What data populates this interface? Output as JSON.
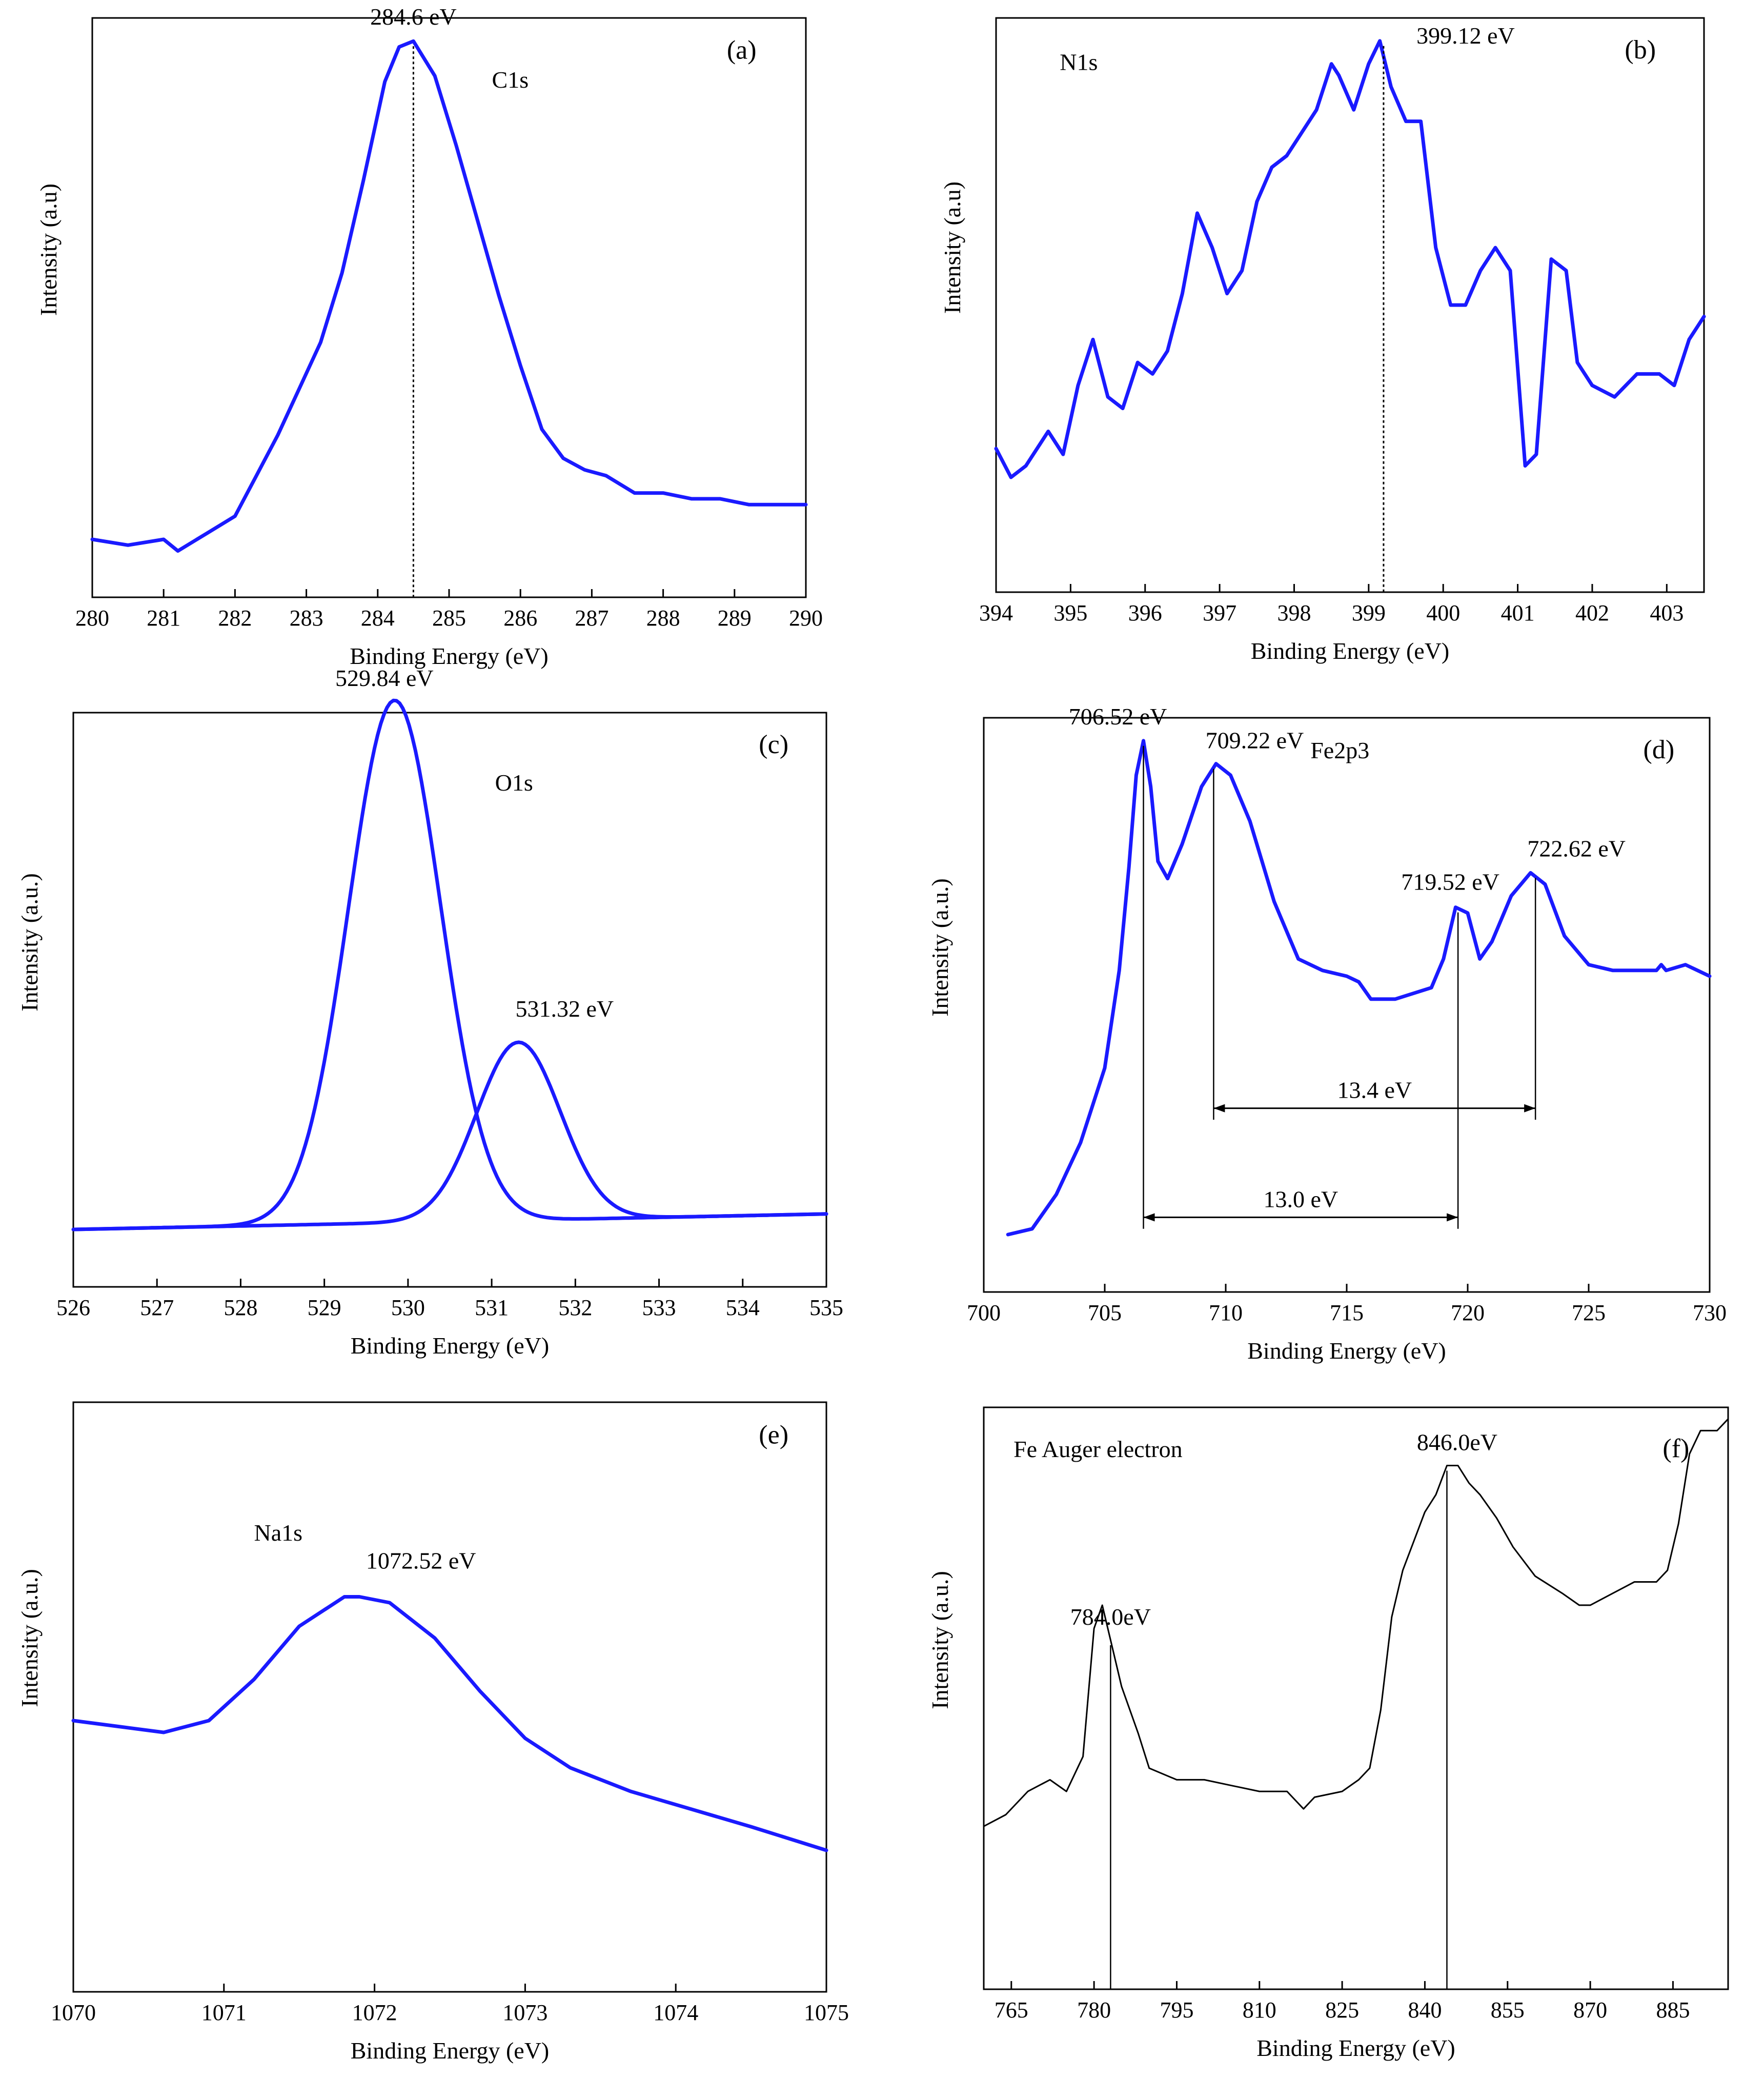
{
  "figure": {
    "panels_count": 6
  },
  "chart_data": [
    {
      "type": "line",
      "panel": "(a)",
      "title": "C1s",
      "xlabel": "Binding Energy (eV)",
      "ylabel": "Intensity (a.u)",
      "xlim": [
        280,
        290
      ],
      "ylim": [
        0,
        100
      ],
      "xticks": [
        280,
        281,
        282,
        283,
        284,
        285,
        286,
        287,
        288,
        289,
        290
      ],
      "tick_labels": [
        "280",
        "281",
        "282",
        "283",
        "284",
        "285",
        "286",
        "287",
        "288",
        "289",
        "290"
      ],
      "color": "#1a1aff",
      "x": [
        280.0,
        280.5,
        281.0,
        281.2,
        281.6,
        282.0,
        282.3,
        282.6,
        282.9,
        283.2,
        283.5,
        283.8,
        284.1,
        284.3,
        284.5,
        284.8,
        285.1,
        285.4,
        285.7,
        286.0,
        286.3,
        286.6,
        286.9,
        287.2,
        287.6,
        288.0,
        288.4,
        288.8,
        289.2,
        289.6,
        290.0
      ],
      "y": [
        10,
        9,
        10,
        8,
        11,
        14,
        21,
        28,
        36,
        44,
        56,
        72,
        89,
        95,
        96,
        90,
        78,
        65,
        52,
        40,
        29,
        24,
        22,
        21,
        18,
        18,
        17,
        17,
        16,
        16,
        16
      ],
      "annotations": [
        {
          "text": "284.6 eV",
          "x": 284.5,
          "line": "dotted"
        }
      ]
    },
    {
      "type": "line",
      "panel": "(b)",
      "title": "N1s",
      "xlabel": "Binding Energy (eV)",
      "ylabel": "Intensity (a.u)",
      "xlim": [
        394,
        403.5
      ],
      "ylim": [
        0,
        100
      ],
      "xticks": [
        394,
        395,
        396,
        397,
        398,
        399,
        400,
        401,
        402,
        403
      ],
      "tick_labels": [
        "394",
        "395",
        "396",
        "397",
        "398",
        "399",
        "400",
        "401",
        "402",
        "403"
      ],
      "color": "#1a1aff",
      "x": [
        394.0,
        394.2,
        394.4,
        394.7,
        394.9,
        395.1,
        395.3,
        395.5,
        395.7,
        395.9,
        396.1,
        396.3,
        396.5,
        396.7,
        396.9,
        397.1,
        397.3,
        397.5,
        397.7,
        397.9,
        398.1,
        398.3,
        398.5,
        398.6,
        398.8,
        399.0,
        399.15,
        399.3,
        399.5,
        399.7,
        399.9,
        400.1,
        400.3,
        400.5,
        400.7,
        400.9,
        401.1,
        401.25,
        401.45,
        401.65,
        401.8,
        402.0,
        402.3,
        402.6,
        402.9,
        403.1,
        403.3,
        403.5
      ],
      "y": [
        25,
        20,
        22,
        28,
        24,
        36,
        44,
        34,
        32,
        40,
        38,
        42,
        52,
        66,
        60,
        52,
        56,
        68,
        74,
        76,
        80,
        84,
        92,
        90,
        84,
        92,
        96,
        88,
        82,
        82,
        60,
        50,
        50,
        56,
        60,
        56,
        22,
        24,
        58,
        56,
        40,
        36,
        34,
        38,
        38,
        36,
        44,
        48
      ],
      "annotations": [
        {
          "text": "399.12 eV",
          "x": 399.2,
          "line": "dotted"
        }
      ]
    },
    {
      "type": "line",
      "panel": "(c)",
      "title": "O1s",
      "xlabel": "Binding Energy (eV)",
      "ylabel": "Intensity (a.u.)",
      "xlim": [
        526,
        535
      ],
      "ylim": [
        0,
        100
      ],
      "xticks": [
        526,
        527,
        528,
        529,
        530,
        531,
        532,
        533,
        534,
        535
      ],
      "tick_labels": [
        "526",
        "527",
        "528",
        "529",
        "530",
        "531",
        "532",
        "533",
        "534",
        "535"
      ],
      "series": [
        {
          "name": "529.84 eV component",
          "center": 529.84,
          "height": 91,
          "sigma": 0.55,
          "baseline": 10,
          "slope": 0.3
        },
        {
          "name": "531.32 eV component",
          "center": 531.32,
          "height": 31,
          "sigma": 0.5,
          "baseline": 10,
          "slope": 0.3
        }
      ],
      "annotations": [
        {
          "text": "529.84 eV",
          "x": 529.84
        },
        {
          "text": "531.32 eV",
          "x": 531.32
        }
      ]
    },
    {
      "type": "line",
      "panel": "(d)",
      "title": "Fe2p3",
      "xlabel": "Binding Energy (eV)",
      "ylabel": "Intensity (a.u.)",
      "xlim": [
        700,
        730
      ],
      "ylim": [
        0,
        100
      ],
      "xticks": [
        700,
        705,
        710,
        715,
        720,
        725,
        730
      ],
      "tick_labels": [
        "700",
        "705",
        "710",
        "715",
        "720",
        "725",
        "730"
      ],
      "color": "#1a1aff",
      "x": [
        701.0,
        702.0,
        703.0,
        704.0,
        705.0,
        705.6,
        706.0,
        706.3,
        706.6,
        706.9,
        707.2,
        707.6,
        708.2,
        709.0,
        709.6,
        710.2,
        711.0,
        712.0,
        713.0,
        714.0,
        715.0,
        715.5,
        716.0,
        717.0,
        718.5,
        719.0,
        719.5,
        720.0,
        720.5,
        721.0,
        721.8,
        722.6,
        723.2,
        724.0,
        725.0,
        726.0,
        727.0,
        727.8,
        728.0,
        728.2,
        729.0,
        729.5,
        730.0
      ],
      "y": [
        10,
        11,
        17,
        26,
        39,
        56,
        74,
        90,
        96,
        88,
        75,
        72,
        78,
        88,
        92,
        90,
        82,
        68,
        58,
        56,
        55,
        54,
        51,
        51,
        53,
        58,
        67,
        66,
        58,
        61,
        69,
        73,
        71,
        62,
        57,
        56,
        56,
        56,
        57,
        56,
        57,
        56,
        55
      ],
      "annotations": [
        {
          "text": "706.52 eV",
          "x": 706.6
        },
        {
          "text": "709.22 eV",
          "x": 709.5
        },
        {
          "text": "719.52 eV",
          "x": 719.6
        },
        {
          "text": "722.62 eV",
          "x": 722.8
        },
        {
          "text": "13.4 eV",
          "from": 709.5,
          "to": 722.8
        },
        {
          "text": "13.0 eV",
          "from": 706.6,
          "to": 719.6
        }
      ]
    },
    {
      "type": "line",
      "panel": "(e)",
      "title": "Na1s",
      "xlabel": "Binding Energy (eV)",
      "ylabel": "Intensity (a.u.)",
      "xlim": [
        1070,
        1075
      ],
      "ylim": [
        0,
        100
      ],
      "xticks": [
        1070,
        1071,
        1072,
        1073,
        1074,
        1075
      ],
      "tick_labels": [
        "1070",
        "1071",
        "1072",
        "1073",
        "1074",
        "1075"
      ],
      "color": "#1a1aff",
      "x": [
        1070.0,
        1070.3,
        1070.6,
        1070.9,
        1071.2,
        1071.5,
        1071.8,
        1071.9,
        1072.1,
        1072.4,
        1072.7,
        1073.0,
        1073.3,
        1073.7,
        1074.1,
        1074.5,
        1075.0
      ],
      "y": [
        46,
        45,
        44,
        46,
        53,
        62,
        67,
        67,
        66,
        60,
        51,
        43,
        38,
        34,
        31,
        28,
        24
      ],
      "annotations": [
        {
          "text": "1072.52 eV",
          "x": 1071.9
        }
      ]
    },
    {
      "type": "line",
      "panel": "(f)",
      "title": "Fe Auger electron",
      "xlabel": "Binding Energy (eV)",
      "ylabel": "Intensity (a.u.)",
      "xlim": [
        760,
        895
      ],
      "ylim": [
        0,
        100
      ],
      "xticks": [
        765,
        780,
        795,
        810,
        825,
        840,
        855,
        870,
        885
      ],
      "tick_labels": [
        "765",
        "780",
        "795",
        "810",
        "825",
        "840",
        "855",
        "870",
        "885"
      ],
      "color": "#000000",
      "x": [
        760,
        764,
        768,
        772,
        775,
        778,
        780,
        781.5,
        783,
        785,
        788,
        790,
        795,
        800,
        805,
        810,
        815,
        818,
        820,
        825,
        828,
        830,
        832,
        834,
        836,
        838,
        840,
        842,
        844,
        846,
        848,
        850,
        853,
        856,
        860,
        865,
        868,
        870,
        874,
        878,
        882,
        884,
        886,
        888,
        890,
        893,
        895
      ],
      "y": [
        28,
        30,
        34,
        36,
        34,
        40,
        62,
        66,
        60,
        52,
        44,
        38,
        36,
        36,
        35,
        34,
        34,
        31,
        33,
        34,
        36,
        38,
        48,
        64,
        72,
        77,
        82,
        85,
        90,
        90,
        87,
        85,
        81,
        76,
        71,
        68,
        66,
        66,
        68,
        70,
        70,
        72,
        80,
        92,
        96,
        96,
        98
      ],
      "annotations": [
        {
          "text": "784.0eV",
          "x": 783
        },
        {
          "text": "846.0eV",
          "x": 844
        }
      ]
    }
  ]
}
